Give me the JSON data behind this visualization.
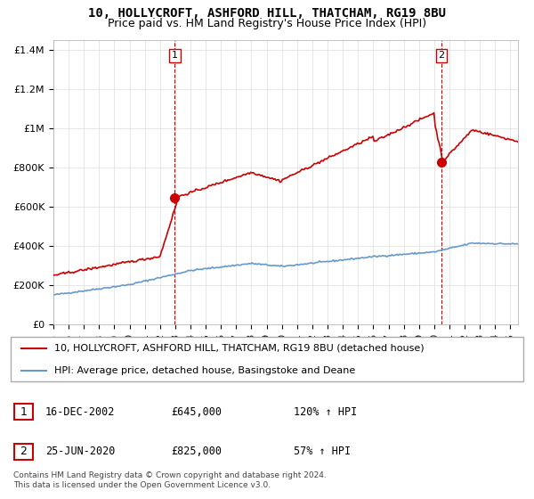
{
  "title": "10, HOLLYCROFT, ASHFORD HILL, THATCHAM, RG19 8BU",
  "subtitle": "Price paid vs. HM Land Registry's House Price Index (HPI)",
  "ylabel_ticks": [
    "£0",
    "£200K",
    "£400K",
    "£600K",
    "£800K",
    "£1M",
    "£1.2M",
    "£1.4M"
  ],
  "ytick_vals": [
    0,
    200000,
    400000,
    600000,
    800000,
    1000000,
    1200000,
    1400000
  ],
  "ylim": [
    0,
    1450000
  ],
  "xlim_start": 1995.0,
  "xlim_end": 2025.5,
  "red_line_color": "#cc0000",
  "blue_line_color": "#6699cc",
  "dashed_line_color": "#cc0000",
  "marker1_x": 2002.96,
  "marker1_y": 645000,
  "marker2_x": 2020.48,
  "marker2_y": 825000,
  "legend_line1": "10, HOLLYCROFT, ASHFORD HILL, THATCHAM, RG19 8BU (detached house)",
  "legend_line2": "HPI: Average price, detached house, Basingstoke and Deane",
  "table_row1": [
    "1",
    "16-DEC-2002",
    "£645,000",
    "120% ↑ HPI"
  ],
  "table_row2": [
    "2",
    "25-JUN-2020",
    "£825,000",
    "57% ↑ HPI"
  ],
  "footer": "Contains HM Land Registry data © Crown copyright and database right 2024.\nThis data is licensed under the Open Government Licence v3.0.",
  "title_fontsize": 10,
  "subtitle_fontsize": 9,
  "axis_fontsize": 8,
  "legend_fontsize": 8
}
